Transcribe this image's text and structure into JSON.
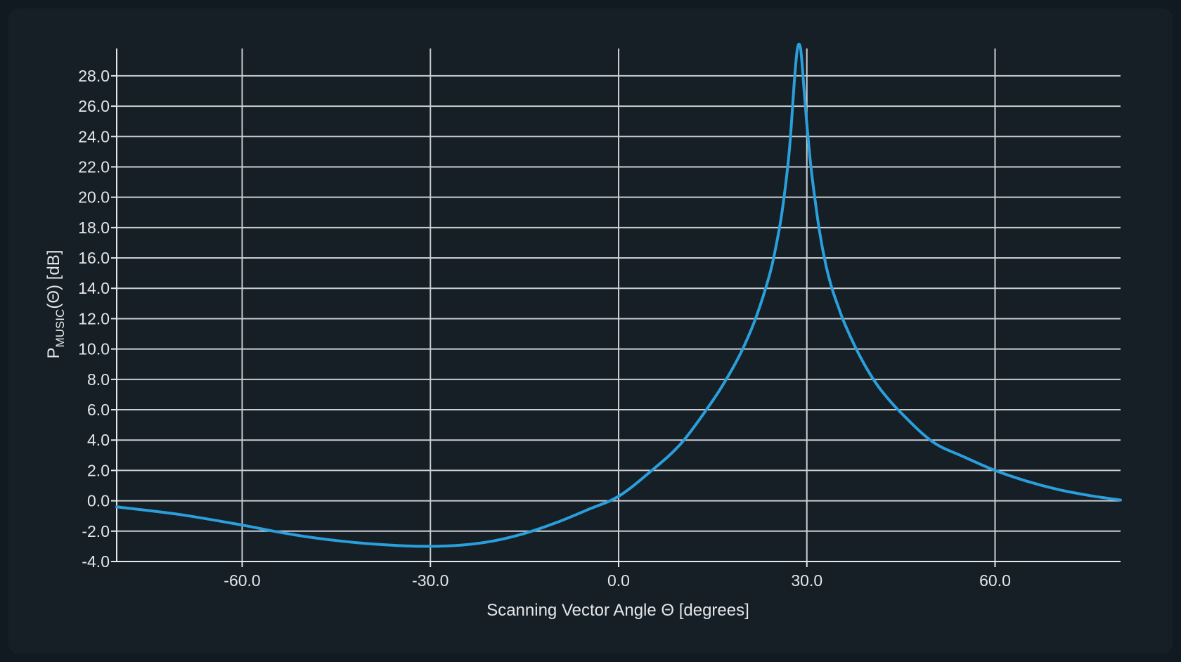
{
  "chart_data": {
    "type": "line",
    "title": "",
    "xlabel": "Scanning Vector Angle Θ [degrees]",
    "ylabel": {
      "main": "P",
      "subscript": "MUSIC",
      "suffix": "(Θ) [dB]"
    },
    "xlim": [
      -80,
      80
    ],
    "ylim": [
      -4,
      29.8
    ],
    "grid": true,
    "legend": "none",
    "x_ticks": [
      {
        "value": -60,
        "label": "-60.0"
      },
      {
        "value": -30,
        "label": "-30.0"
      },
      {
        "value": 0,
        "label": "0.0"
      },
      {
        "value": 30,
        "label": "30.0"
      },
      {
        "value": 60,
        "label": "60.0"
      }
    ],
    "y_ticks": [
      {
        "value": -4,
        "label": "-4.0"
      },
      {
        "value": -2,
        "label": "-2.0"
      },
      {
        "value": 0,
        "label": "0.0"
      },
      {
        "value": 2,
        "label": "2.0"
      },
      {
        "value": 4,
        "label": "4.0"
      },
      {
        "value": 6,
        "label": "6.0"
      },
      {
        "value": 8,
        "label": "8.0"
      },
      {
        "value": 10,
        "label": "10.0"
      },
      {
        "value": 12,
        "label": "12.0"
      },
      {
        "value": 14,
        "label": "14.0"
      },
      {
        "value": 16,
        "label": "16.0"
      },
      {
        "value": 18,
        "label": "18.0"
      },
      {
        "value": 20,
        "label": "20.0"
      },
      {
        "value": 22,
        "label": "22.0"
      },
      {
        "value": 24,
        "label": "24.0"
      },
      {
        "value": 26,
        "label": "26.0"
      },
      {
        "value": 28,
        "label": "28.0"
      }
    ],
    "series": [
      {
        "color": "#2a9fdc",
        "x": [
          -80,
          -70,
          -60,
          -55,
          -50,
          -45,
          -40,
          -35,
          -30,
          -25,
          -20,
          -15,
          -10,
          -5,
          0,
          5,
          10,
          15,
          18,
          20,
          22,
          24,
          25,
          26,
          27,
          27.5,
          28,
          28.5,
          29,
          29.5,
          30,
          30.5,
          31,
          32,
          33,
          34,
          35,
          36,
          38,
          40,
          42,
          45,
          50,
          55,
          60,
          65,
          70,
          75,
          80
        ],
        "y": [
          -0.4,
          -0.9,
          -1.6,
          -2.0,
          -2.35,
          -2.62,
          -2.82,
          -2.95,
          -3.0,
          -2.92,
          -2.65,
          -2.15,
          -1.45,
          -0.6,
          0.3,
          1.9,
          3.8,
          6.6,
          8.6,
          10.2,
          12.2,
          14.8,
          16.6,
          18.9,
          22.2,
          24.6,
          27.6,
          29.8,
          29.8,
          27.4,
          24.8,
          22.6,
          20.8,
          17.8,
          15.6,
          14.0,
          12.8,
          11.7,
          9.9,
          8.4,
          7.2,
          5.8,
          3.9,
          2.9,
          2.0,
          1.3,
          0.75,
          0.35,
          0.05
        ]
      }
    ]
  }
}
